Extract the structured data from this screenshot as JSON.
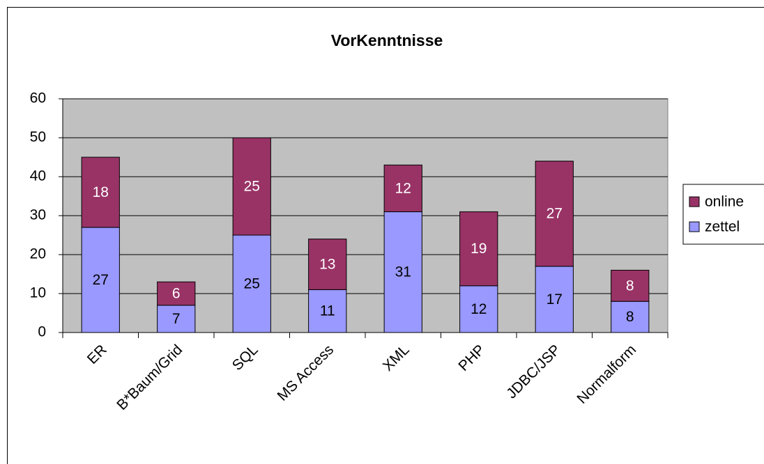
{
  "chart_data": {
    "type": "bar",
    "stacked": true,
    "title": "VorKenntnisse",
    "categories": [
      "ER",
      "B*Baum/Grid",
      "SQL",
      "MS Access",
      "XML",
      "PHP",
      "JDBC/JSP",
      "Normalform"
    ],
    "series": [
      {
        "name": "zettel",
        "color": "#9999ff",
        "label_color": "#000000",
        "values": [
          27,
          7,
          25,
          11,
          31,
          12,
          17,
          8
        ]
      },
      {
        "name": "online",
        "color": "#993366",
        "label_color": "#ffffff",
        "values": [
          18,
          6,
          25,
          13,
          12,
          19,
          27,
          8
        ]
      }
    ],
    "ylim": [
      0,
      60
    ],
    "yticks": [
      0,
      10,
      20,
      30,
      40,
      50,
      60
    ],
    "grid": true,
    "legend": "right"
  }
}
